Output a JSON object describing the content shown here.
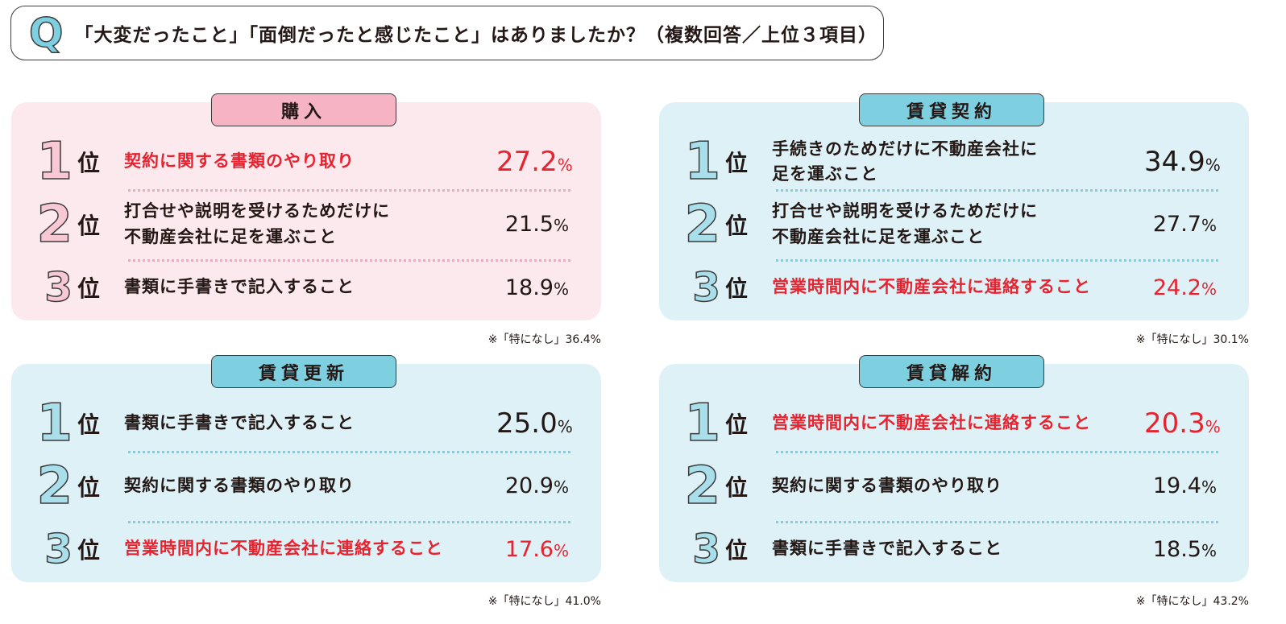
{
  "question": {
    "icon": "Q",
    "text": "「大変だったこと」「面倒だったと感じたこと」はありましたか？（複数回答／上位３項目）"
  },
  "rank_unit": "位",
  "percent_sign": "%",
  "colors": {
    "pink_panel": "#fce9ee",
    "pink_tag": "#f5b3c3",
    "blue_panel": "#def1f6",
    "blue_tag": "#7ed0e0",
    "highlight": "#e8232f"
  },
  "panels": [
    {
      "title": "購入",
      "theme": "pink",
      "note": "※「特になし」36.4%",
      "items": [
        {
          "rank": "1",
          "label": "契約に関する書類のやり取り",
          "value": "27.2",
          "highlight": true
        },
        {
          "rank": "2",
          "label": "打合せや説明を受けるためだけに\n不動産会社に足を運ぶこと",
          "value": "21.5",
          "highlight": false
        },
        {
          "rank": "3",
          "label": "書類に手書きで記入すること",
          "value": "18.9",
          "highlight": false
        }
      ]
    },
    {
      "title": "賃貸契約",
      "theme": "blue",
      "note": "※「特になし」30.1%",
      "items": [
        {
          "rank": "1",
          "label": "手続きのためだけに不動産会社に\n足を運ぶこと",
          "value": "34.9",
          "highlight": false
        },
        {
          "rank": "2",
          "label": "打合せや説明を受けるためだけに\n不動産会社に足を運ぶこと",
          "value": "27.7",
          "highlight": false
        },
        {
          "rank": "3",
          "label": "営業時間内に不動産会社に連絡すること",
          "value": "24.2",
          "highlight": true
        }
      ]
    },
    {
      "title": "賃貸更新",
      "theme": "blue",
      "note": "※「特になし」41.0%",
      "items": [
        {
          "rank": "1",
          "label": "書類に手書きで記入すること",
          "value": "25.0",
          "highlight": false
        },
        {
          "rank": "2",
          "label": "契約に関する書類のやり取り",
          "value": "20.9",
          "highlight": false
        },
        {
          "rank": "3",
          "label": "営業時間内に不動産会社に連絡すること",
          "value": "17.6",
          "highlight": true
        }
      ]
    },
    {
      "title": "賃貸解約",
      "theme": "blue",
      "note": "※「特になし」43.2%",
      "items": [
        {
          "rank": "1",
          "label": "営業時間内に不動産会社に連絡すること",
          "value": "20.3",
          "highlight": true
        },
        {
          "rank": "2",
          "label": "契約に関する書類のやり取り",
          "value": "19.4",
          "highlight": false
        },
        {
          "rank": "3",
          "label": "書類に手書きで記入すること",
          "value": "18.5",
          "highlight": false
        }
      ]
    }
  ]
}
